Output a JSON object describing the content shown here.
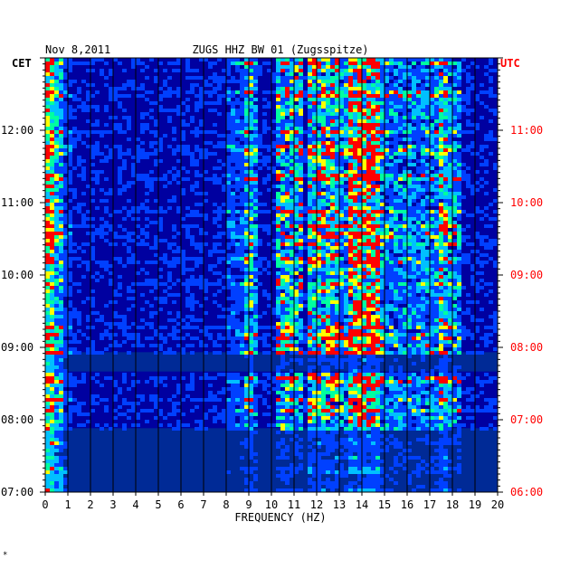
{
  "header": {
    "date": "Nov 8,2011",
    "station": "ZUGS HHZ BW 01 (Zugsspitze)",
    "left_tz": "CET",
    "right_tz": "UTC"
  },
  "footer_mark": "*",
  "colors": {
    "background": "#0000a0",
    "left_labels": "#000000",
    "right_labels": "#ff0000",
    "gridlines": "#000000"
  },
  "chart_data": {
    "type": "heatmap",
    "title": "ZUGS HHZ BW 01 (Zugsspitze)",
    "xlabel": "FREQUENCY (HZ)",
    "ylabel": "",
    "xlim": [
      0,
      20
    ],
    "x_ticks": [
      "0",
      "1",
      "2",
      "3",
      "4",
      "5",
      "6",
      "7",
      "8",
      "9",
      "10",
      "11",
      "12",
      "13",
      "14",
      "15",
      "16",
      "17",
      "18",
      "19",
      "20"
    ],
    "y_range_cet": [
      "07:00",
      "13:00"
    ],
    "y_ticks_cet": [
      "07:00",
      "08:00",
      "09:00",
      "10:00",
      "11:00",
      "12:00"
    ],
    "y_ticks_utc": [
      "06:00",
      "07:00",
      "08:00",
      "09:00",
      "10:00",
      "11:00"
    ],
    "grid": true,
    "quiet_periods": [
      {
        "from": "07:00",
        "to": "07:53"
      },
      {
        "from": "08:40",
        "to": "08:56"
      }
    ],
    "color_scale": [
      "#0000a0",
      "#0040ff",
      "#00c0ff",
      "#00ffa0",
      "#ffff00",
      "#ff0000"
    ]
  }
}
